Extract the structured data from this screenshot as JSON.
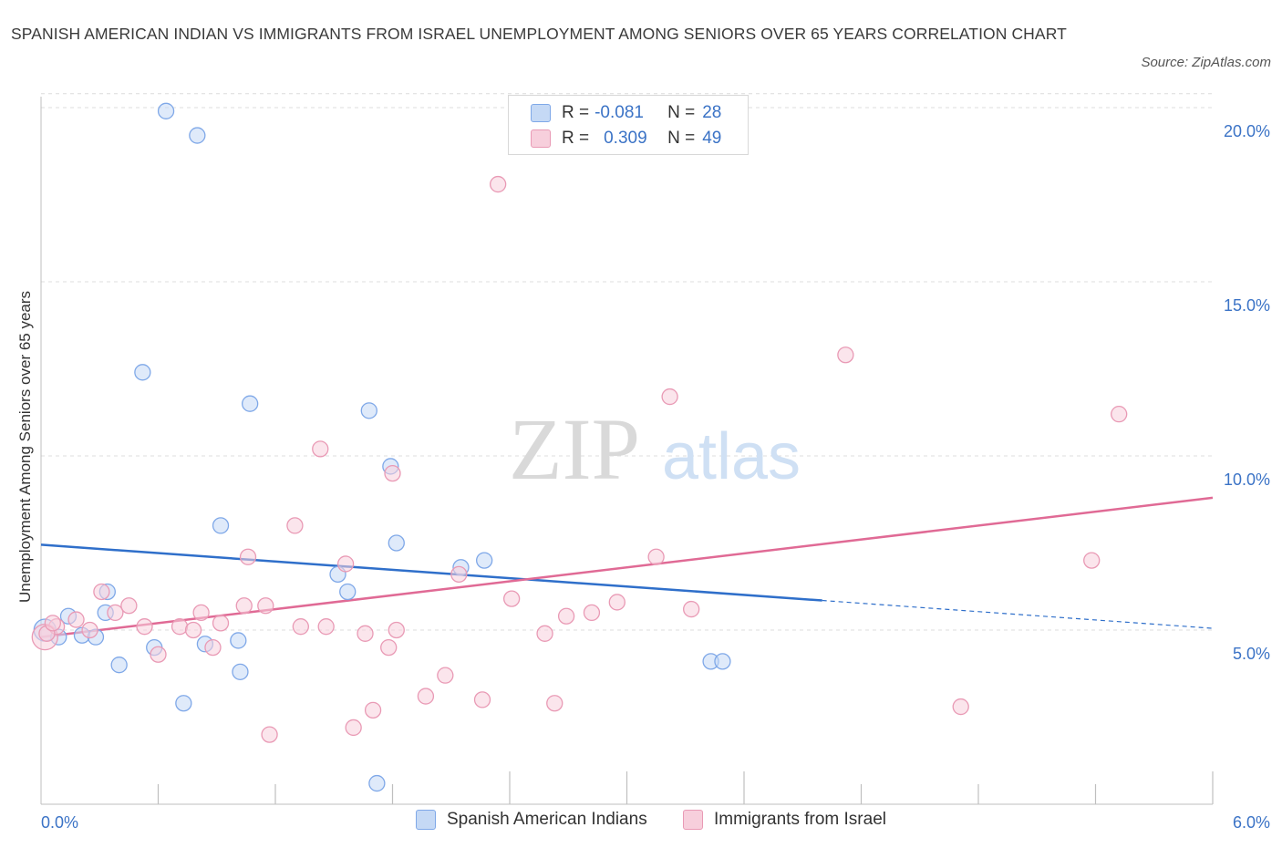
{
  "title": "SPANISH AMERICAN INDIAN VS IMMIGRANTS FROM ISRAEL UNEMPLOYMENT AMONG SENIORS OVER 65 YEARS CORRELATION CHART",
  "source": "Source: ZipAtlas.com",
  "watermark": {
    "zip": "ZIP",
    "atlas": "atlas"
  },
  "legend": {
    "rows": [
      {
        "r_label": "R =",
        "r_value": "-0.081",
        "n_label": "N =",
        "n_value": "28"
      },
      {
        "r_label": "R =",
        "r_value": "0.309",
        "n_label": "N =",
        "n_value": "49"
      }
    ]
  },
  "chart_data": {
    "type": "scatter",
    "title": "SPANISH AMERICAN INDIAN VS IMMIGRANTS FROM ISRAEL UNEMPLOYMENT AMONG SENIORS OVER 65 YEARS CORRELATION CHART",
    "xlabel": "",
    "ylabel": "Unemployment Among Seniors over 65 years",
    "xlim": [
      0,
      6
    ],
    "ylim": [
      0,
      20
    ],
    "x_tick_labels": [
      "0.0%",
      "6.0%"
    ],
    "y_ticks": [
      5,
      10,
      15,
      20
    ],
    "y_tick_labels": [
      "5.0%",
      "10.0%",
      "15.0%",
      "20.0%"
    ],
    "grid": true,
    "legend_position": "bottom",
    "series": [
      {
        "name": "Spanish American Indians",
        "color": "#7fa8e8",
        "fill": "#c5d9f5",
        "line_color": "#2f6fca",
        "trend": {
          "x0": 0.0,
          "y0": 7.45,
          "x1": 4.0,
          "y1": 5.85,
          "dash_to_x": 6.0,
          "dash_to_y": 5.05
        },
        "points": [
          [
            0.02,
            5.0
          ],
          [
            0.09,
            4.8
          ],
          [
            0.14,
            5.4
          ],
          [
            0.21,
            4.85
          ],
          [
            0.28,
            4.8
          ],
          [
            0.33,
            5.5
          ],
          [
            0.34,
            6.1
          ],
          [
            0.4,
            4.0
          ],
          [
            0.52,
            12.4
          ],
          [
            0.58,
            4.5
          ],
          [
            0.64,
            19.9
          ],
          [
            0.73,
            2.9
          ],
          [
            0.8,
            19.2
          ],
          [
            0.84,
            4.6
          ],
          [
            0.92,
            8.0
          ],
          [
            1.01,
            4.7
          ],
          [
            1.02,
            3.8
          ],
          [
            1.07,
            11.5
          ],
          [
            1.52,
            6.6
          ],
          [
            1.57,
            6.1
          ],
          [
            1.68,
            11.3
          ],
          [
            1.72,
            0.6
          ],
          [
            1.79,
            9.7
          ],
          [
            1.82,
            7.5
          ],
          [
            2.15,
            6.8
          ],
          [
            2.27,
            7.0
          ],
          [
            3.43,
            4.1
          ],
          [
            3.49,
            4.1
          ]
        ]
      },
      {
        "name": "Immigrants from Israel",
        "color": "#e99ab5",
        "fill": "#f7cfdc",
        "line_color": "#e06a95",
        "trend": {
          "x0": 0.0,
          "y0": 4.8,
          "x1": 6.0,
          "y1": 8.8
        },
        "points": [
          [
            0.02,
            4.8
          ],
          [
            0.08,
            5.1
          ],
          [
            0.18,
            5.3
          ],
          [
            0.25,
            5.0
          ],
          [
            0.31,
            6.1
          ],
          [
            0.38,
            5.5
          ],
          [
            0.45,
            5.7
          ],
          [
            0.53,
            5.1
          ],
          [
            0.6,
            4.3
          ],
          [
            0.71,
            5.1
          ],
          [
            0.78,
            5.0
          ],
          [
            0.82,
            5.5
          ],
          [
            0.88,
            4.5
          ],
          [
            0.92,
            5.2
          ],
          [
            1.04,
            5.7
          ],
          [
            1.06,
            7.1
          ],
          [
            1.15,
            5.7
          ],
          [
            1.17,
            2.0
          ],
          [
            1.3,
            8.0
          ],
          [
            1.33,
            5.1
          ],
          [
            1.43,
            10.2
          ],
          [
            1.46,
            5.1
          ],
          [
            1.56,
            6.9
          ],
          [
            1.6,
            2.2
          ],
          [
            1.66,
            4.9
          ],
          [
            1.7,
            2.7
          ],
          [
            1.78,
            4.5
          ],
          [
            1.8,
            9.5
          ],
          [
            1.82,
            5.0
          ],
          [
            1.97,
            3.1
          ],
          [
            2.07,
            3.7
          ],
          [
            2.14,
            6.6
          ],
          [
            2.26,
            3.0
          ],
          [
            2.34,
            17.8
          ],
          [
            2.41,
            5.9
          ],
          [
            2.58,
            4.9
          ],
          [
            2.63,
            2.9
          ],
          [
            2.69,
            5.4
          ],
          [
            2.82,
            5.5
          ],
          [
            2.95,
            5.8
          ],
          [
            3.15,
            7.1
          ],
          [
            3.22,
            11.7
          ],
          [
            3.33,
            5.6
          ],
          [
            4.12,
            12.9
          ],
          [
            4.71,
            2.8
          ],
          [
            5.38,
            7.0
          ],
          [
            5.52,
            11.2
          ],
          [
            0.03,
            4.9
          ],
          [
            0.06,
            5.2
          ]
        ]
      }
    ]
  }
}
